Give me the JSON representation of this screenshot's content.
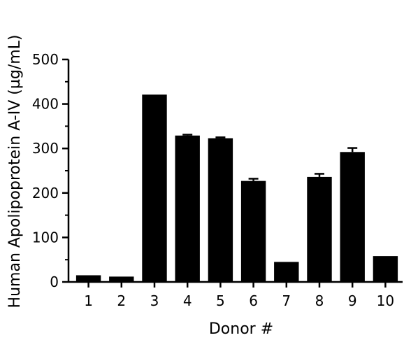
{
  "chart_data": {
    "type": "bar",
    "xlabel": "Donor #",
    "ylabel": "Human Apolipoprotein A-IV (µg/mL)",
    "categories": [
      "1",
      "2",
      "3",
      "4",
      "5",
      "6",
      "7",
      "8",
      "9",
      "10"
    ],
    "values": [
      15,
      12,
      421,
      329,
      323,
      227,
      45,
      236,
      292,
      58
    ],
    "error": [
      0,
      0,
      0,
      2,
      2,
      5,
      0,
      7,
      9,
      0
    ],
    "ylim": [
      0,
      500
    ],
    "yticks": [
      "0",
      "100",
      "200",
      "300",
      "400",
      "500"
    ],
    "grid": false,
    "colors": {
      "bar": "#000000",
      "axis": "#000000"
    }
  }
}
